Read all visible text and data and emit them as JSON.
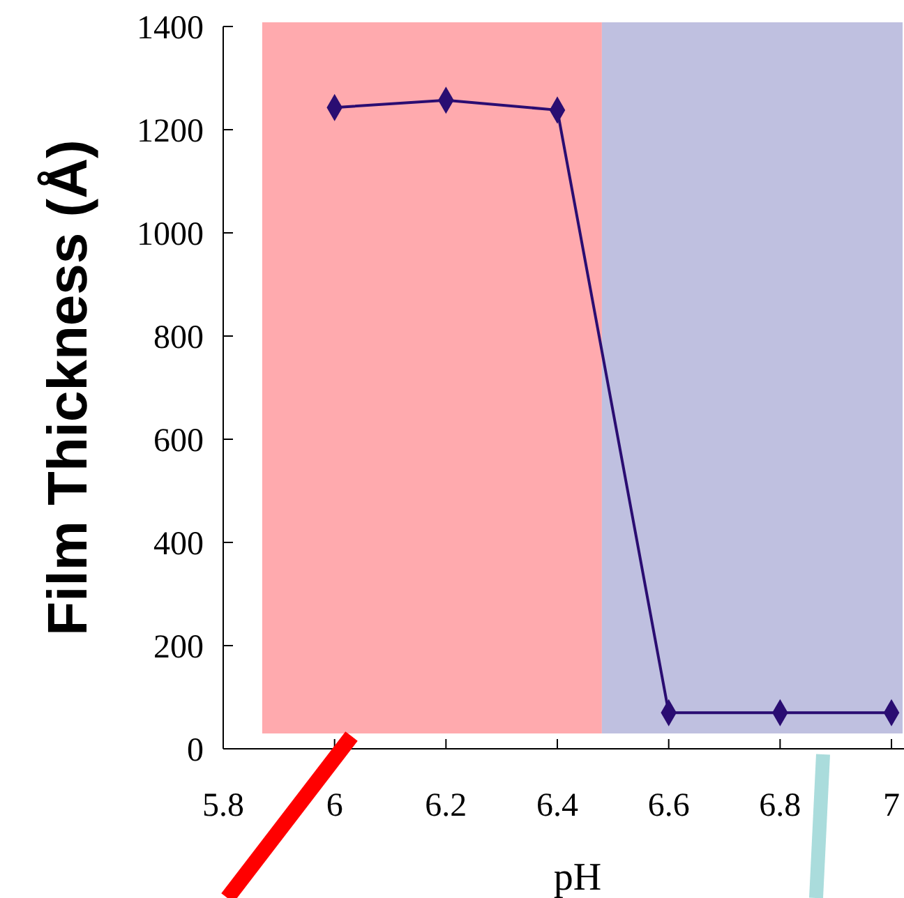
{
  "chart_data": {
    "type": "line",
    "xlabel": "pH",
    "ylabel": "Film Thickness (Å)",
    "xlim": [
      5.8,
      7.02
    ],
    "xticks": [
      5.8,
      6,
      6.2,
      6.4,
      6.6,
      6.8,
      7
    ],
    "ylim": [
      0,
      1400
    ],
    "yticks": [
      0,
      200,
      400,
      600,
      800,
      1000,
      1200,
      1400
    ],
    "grid": false,
    "marker": "diamond",
    "line_style": "solid",
    "series": [
      {
        "color": "#2a0d72",
        "x": [
          6,
          6.2,
          6.4,
          6.6,
          6.8,
          7
        ],
        "values": [
          1243,
          1257,
          1238,
          70,
          70,
          70
        ]
      }
    ],
    "bands": [
      {
        "axis": "x",
        "from": 5.87,
        "to": 6.48,
        "color": "#ffaaae"
      },
      {
        "axis": "x",
        "from": 6.48,
        "to": 7.02,
        "color": "#bfc0e0"
      }
    ]
  }
}
